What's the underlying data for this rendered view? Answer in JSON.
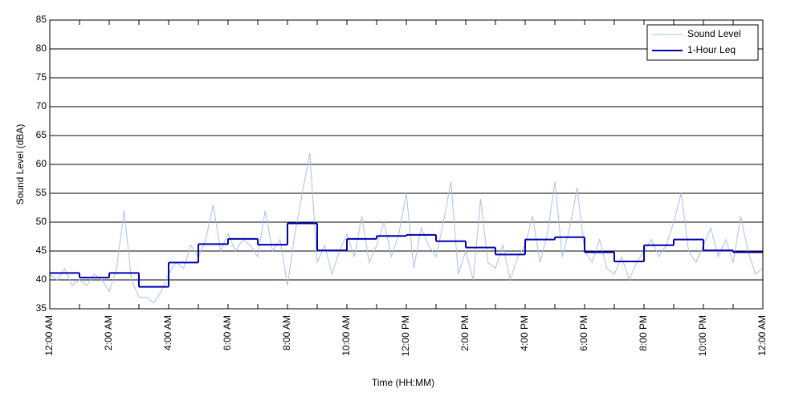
{
  "chart_data": {
    "type": "line",
    "xlabel": "Time (HH:MM)",
    "ylabel": "Sound Level (dBA)",
    "xlim": [
      0,
      24
    ],
    "ylim": [
      35,
      85
    ],
    "yticks": [
      35,
      40,
      45,
      50,
      55,
      60,
      65,
      70,
      75,
      80,
      85
    ],
    "xticks": [
      {
        "value": 0,
        "label": "12:00 AM"
      },
      {
        "value": 2,
        "label": "2:00 AM"
      },
      {
        "value": 4,
        "label": "4:00 AM"
      },
      {
        "value": 6,
        "label": "6:00 AM"
      },
      {
        "value": 8,
        "label": "8:00 AM"
      },
      {
        "value": 10,
        "label": "10:00 AM"
      },
      {
        "value": 12,
        "label": "12:00 PM"
      },
      {
        "value": 14,
        "label": "2:00 PM"
      },
      {
        "value": 16,
        "label": "4:00 PM"
      },
      {
        "value": 18,
        "label": "6:00 PM"
      },
      {
        "value": 20,
        "label": "8:00 PM"
      },
      {
        "value": 22,
        "label": "10:00 PM"
      },
      {
        "value": 24,
        "label": "12:00 AM"
      }
    ],
    "xminorticks": [
      1,
      3,
      5,
      7,
      9,
      11,
      13,
      15,
      17,
      19,
      21,
      23
    ],
    "grid": true,
    "legend": "upper right",
    "series": [
      {
        "name": "Sound Level",
        "color": "#a8c0f0",
        "style": "line",
        "x": [
          0,
          0.25,
          0.5,
          0.75,
          1,
          1.25,
          1.5,
          1.75,
          2,
          2.25,
          2.5,
          2.75,
          3,
          3.25,
          3.5,
          3.75,
          4,
          4.25,
          4.5,
          4.75,
          5,
          5.25,
          5.5,
          5.75,
          6,
          6.25,
          6.5,
          6.75,
          7,
          7.25,
          7.5,
          7.75,
          8,
          8.25,
          8.5,
          8.75,
          9,
          9.25,
          9.5,
          9.75,
          10,
          10.25,
          10.5,
          10.75,
          11,
          11.25,
          11.5,
          11.75,
          12,
          12.25,
          12.5,
          12.75,
          13,
          13.25,
          13.5,
          13.75,
          14,
          14.25,
          14.5,
          14.75,
          15,
          15.25,
          15.5,
          15.75,
          16,
          16.25,
          16.5,
          16.75,
          17,
          17.25,
          17.5,
          17.75,
          18,
          18.25,
          18.5,
          18.75,
          19,
          19.25,
          19.5,
          19.75,
          20,
          20.25,
          20.5,
          20.75,
          21,
          21.25,
          21.5,
          21.75,
          22,
          22.25,
          22.5,
          22.75,
          23,
          23.25,
          23.5,
          23.75,
          24
        ],
        "values": [
          41,
          40,
          42,
          39,
          40,
          39,
          41,
          40,
          38,
          42,
          52,
          40,
          37,
          37,
          36,
          38,
          41,
          43,
          42,
          46,
          44,
          47,
          53,
          45,
          48,
          45,
          47,
          46,
          44,
          52,
          45,
          47,
          39,
          48,
          55,
          62,
          43,
          46,
          41,
          45,
          48,
          44,
          51,
          43,
          46,
          50,
          44,
          48,
          55,
          42,
          49,
          46,
          44,
          50,
          57,
          41,
          45,
          40,
          54,
          43,
          42,
          46,
          40,
          44,
          46,
          51,
          43,
          48,
          57,
          44,
          49,
          56,
          45,
          43,
          47,
          42,
          41,
          44,
          40,
          43,
          45,
          47,
          44,
          46,
          50,
          55,
          45,
          43,
          46,
          49,
          44,
          47,
          43,
          51,
          45,
          41,
          42
        ]
      },
      {
        "name": "1-Hour Leq",
        "color": "#0000b0",
        "style": "step",
        "x": [
          0,
          1,
          2,
          3,
          4,
          5,
          6,
          7,
          8,
          9,
          10,
          11,
          12,
          13,
          14,
          15,
          16,
          17,
          18,
          19,
          20,
          21,
          22,
          23
        ],
        "values": [
          41.2,
          40.4,
          41.2,
          38.8,
          43,
          46.2,
          47.1,
          46.1,
          49.8,
          45.1,
          47.1,
          47.6,
          47.8,
          46.7,
          45.6,
          44.4,
          47,
          47.4,
          44.8,
          43.2,
          46,
          47,
          45.1,
          44.8
        ]
      }
    ]
  }
}
